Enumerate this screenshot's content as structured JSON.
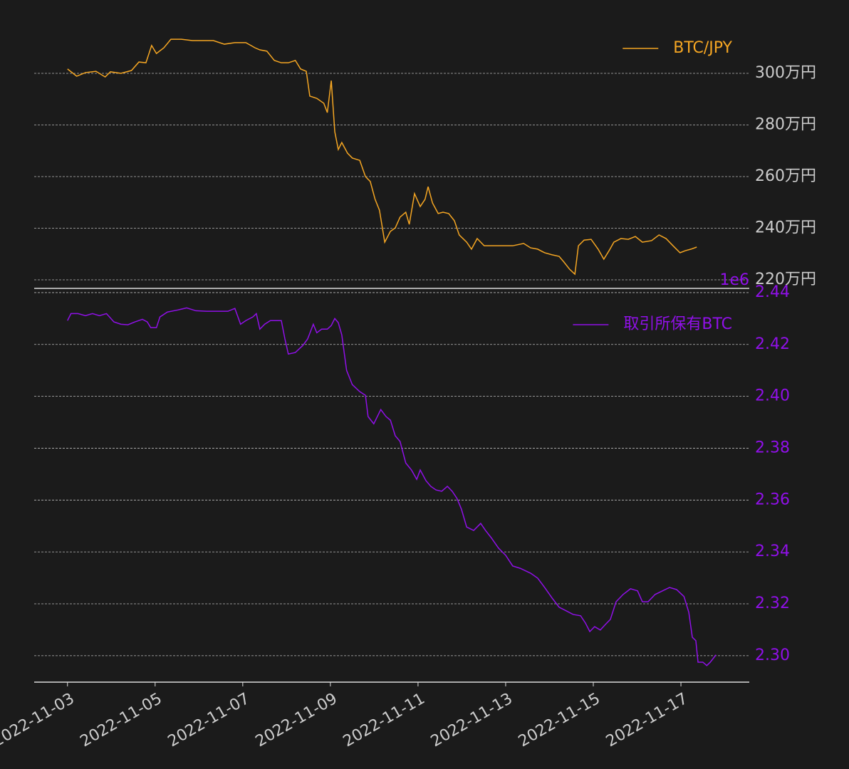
{
  "chart_data": [
    {
      "type": "line",
      "legend": "upper right",
      "grid": true,
      "y_axis_side": "right",
      "tick_color": "#cccccc",
      "xlim": [
        2.24,
        18.56
      ],
      "ylim": [
        2167000,
        3229000
      ],
      "yticks": [
        {
          "value": 2200000,
          "label": "220万円"
        },
        {
          "value": 2400000,
          "label": "240万円"
        },
        {
          "value": 2600000,
          "label": "260万円"
        },
        {
          "value": 2800000,
          "label": "280万円"
        },
        {
          "value": 3000000,
          "label": "300万円"
        }
      ],
      "x": [
        3.0,
        3.21,
        3.41,
        3.65,
        3.86,
        3.98,
        4.22,
        4.46,
        4.63,
        4.79,
        4.92,
        5.03,
        5.2,
        5.36,
        5.6,
        5.85,
        6.09,
        6.33,
        6.58,
        6.82,
        7.07,
        7.28,
        7.39,
        7.55,
        7.72,
        7.88,
        8.04,
        8.2,
        8.32,
        8.45,
        8.53,
        8.69,
        8.85,
        8.93,
        9.02,
        9.1,
        9.18,
        9.26,
        9.39,
        9.5,
        9.67,
        9.8,
        9.91,
        10.02,
        10.12,
        10.24,
        10.37,
        10.48,
        10.59,
        10.72,
        10.8,
        10.92,
        11.05,
        11.16,
        11.23,
        11.33,
        11.46,
        11.57,
        11.7,
        11.83,
        11.94,
        12.11,
        12.22,
        12.35,
        12.51,
        12.67,
        12.84,
        13.0,
        13.16,
        13.41,
        13.57,
        13.73,
        13.89,
        14.06,
        14.22,
        14.33,
        14.46,
        14.58,
        14.66,
        14.79,
        14.95,
        15.11,
        15.24,
        15.36,
        15.47,
        15.63,
        15.8,
        15.96,
        16.12,
        16.33,
        16.5,
        16.66,
        16.82,
        16.98,
        17.1,
        17.23,
        17.36
      ],
      "series": [
        {
          "name": "BTC/JPY",
          "color": "#f5a623",
          "values": [
            3017000,
            2989000,
            3003000,
            3008000,
            2986000,
            3006000,
            3000000,
            3011000,
            3044000,
            3041000,
            3108000,
            3077000,
            3099000,
            3132000,
            3132000,
            3127000,
            3127000,
            3127000,
            3113000,
            3119000,
            3119000,
            3099000,
            3091000,
            3086000,
            3050000,
            3041000,
            3041000,
            3050000,
            3017000,
            3008000,
            2912000,
            2903000,
            2884000,
            2848000,
            2972000,
            2774000,
            2705000,
            2732000,
            2691000,
            2672000,
            2663000,
            2600000,
            2581000,
            2512000,
            2470000,
            2346000,
            2388000,
            2401000,
            2443000,
            2462000,
            2415000,
            2534000,
            2484000,
            2512000,
            2561000,
            2498000,
            2457000,
            2462000,
            2457000,
            2429000,
            2374000,
            2346000,
            2319000,
            2360000,
            2332000,
            2332000,
            2332000,
            2332000,
            2332000,
            2341000,
            2324000,
            2319000,
            2305000,
            2297000,
            2291000,
            2269000,
            2241000,
            2222000,
            2332000,
            2354000,
            2357000,
            2319000,
            2280000,
            2313000,
            2346000,
            2360000,
            2357000,
            2368000,
            2346000,
            2352000,
            2374000,
            2360000,
            2332000,
            2305000,
            2313000,
            2319000,
            2327000
          ]
        }
      ]
    },
    {
      "type": "line",
      "legend": "upper right",
      "grid": true,
      "y_axis_side": "right",
      "tick_color": "#9010e8",
      "y_offset_label": "1e6",
      "xlim": [
        2.24,
        18.56
      ],
      "ylim": [
        2.2898,
        2.4408
      ],
      "yticks": [
        {
          "value": 2.3,
          "label": "2.30"
        },
        {
          "value": 2.32,
          "label": "2.32"
        },
        {
          "value": 2.34,
          "label": "2.34"
        },
        {
          "value": 2.36,
          "label": "2.36"
        },
        {
          "value": 2.38,
          "label": "2.38"
        },
        {
          "value": 2.4,
          "label": "2.40"
        },
        {
          "value": 2.42,
          "label": "2.42"
        },
        {
          "value": 2.44,
          "label": "2.44"
        }
      ],
      "xticks": [
        {
          "value": 3,
          "label": "2022-11-03"
        },
        {
          "value": 5,
          "label": "2022-11-05"
        },
        {
          "value": 7,
          "label": "2022-11-07"
        },
        {
          "value": 9,
          "label": "2022-11-09"
        },
        {
          "value": 11,
          "label": "2022-11-11"
        },
        {
          "value": 13,
          "label": "2022-11-13"
        },
        {
          "value": 15,
          "label": "2022-11-15"
        },
        {
          "value": 17,
          "label": "2022-11-17"
        }
      ],
      "x": [
        3.0,
        3.08,
        3.24,
        3.41,
        3.57,
        3.73,
        3.89,
        4.06,
        4.22,
        4.38,
        4.54,
        4.71,
        4.82,
        4.9,
        5.03,
        5.11,
        5.28,
        5.52,
        5.72,
        5.93,
        6.17,
        6.41,
        6.66,
        6.82,
        6.95,
        7.07,
        7.23,
        7.31,
        7.39,
        7.5,
        7.63,
        7.8,
        7.88,
        7.96,
        8.04,
        8.2,
        8.37,
        8.48,
        8.61,
        8.69,
        8.8,
        8.93,
        9.02,
        9.1,
        9.18,
        9.26,
        9.37,
        9.5,
        9.67,
        9.8,
        9.86,
        9.99,
        10.15,
        10.27,
        10.37,
        10.48,
        10.59,
        10.72,
        10.85,
        10.97,
        11.05,
        11.18,
        11.29,
        11.41,
        11.54,
        11.67,
        11.78,
        11.89,
        11.99,
        12.11,
        12.27,
        12.43,
        12.54,
        12.67,
        12.84,
        13.0,
        13.16,
        13.33,
        13.57,
        13.73,
        13.89,
        14.06,
        14.22,
        14.38,
        14.54,
        14.71,
        14.82,
        14.92,
        15.03,
        15.16,
        15.28,
        15.39,
        15.52,
        15.68,
        15.85,
        16.01,
        16.12,
        16.25,
        16.41,
        16.58,
        16.74,
        16.9,
        17.07,
        17.18,
        17.26,
        17.34,
        17.39,
        17.5,
        17.59,
        17.67,
        17.8
      ],
      "series": [
        {
          "name": "取引所保有BTC",
          "color": "#9010e8",
          "values": [
            2.4292,
            2.4319,
            2.4319,
            2.4311,
            2.4319,
            2.4311,
            2.4319,
            2.4287,
            2.4278,
            2.4276,
            2.4287,
            2.4297,
            2.4287,
            2.4265,
            2.4265,
            2.4306,
            2.4325,
            2.4333,
            2.4341,
            2.433,
            2.4328,
            2.4328,
            2.4328,
            2.4339,
            2.4278,
            2.4292,
            2.4306,
            2.4319,
            2.4259,
            2.4278,
            2.4292,
            2.4292,
            2.4292,
            2.4223,
            2.4163,
            2.4169,
            2.4196,
            2.4221,
            2.4278,
            2.4245,
            2.4259,
            2.4259,
            2.4273,
            2.43,
            2.4284,
            2.4237,
            2.41,
            2.4045,
            2.4018,
            2.4004,
            2.3922,
            2.3894,
            2.3949,
            2.3922,
            2.3908,
            2.3848,
            2.3826,
            2.3743,
            2.3716,
            2.368,
            2.3716,
            2.3675,
            2.3653,
            2.3639,
            2.3634,
            2.3653,
            2.3634,
            2.3606,
            2.3565,
            2.3496,
            2.3483,
            2.351,
            2.3483,
            2.3455,
            2.3414,
            2.3387,
            2.3346,
            2.3337,
            2.3318,
            2.3299,
            2.3263,
            2.3222,
            2.3187,
            2.3173,
            2.3159,
            2.3154,
            2.3126,
            2.3093,
            2.3112,
            2.3099,
            2.3121,
            2.314,
            2.3208,
            2.3236,
            2.3258,
            2.325,
            2.3208,
            2.3208,
            2.3236,
            2.325,
            2.3263,
            2.3255,
            2.3228,
            2.3167,
            2.3071,
            2.3058,
            2.2975,
            2.2975,
            2.2962,
            2.2975,
            2.3003
          ]
        }
      ]
    }
  ]
}
